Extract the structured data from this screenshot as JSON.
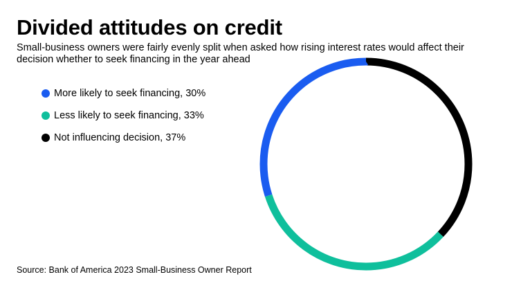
{
  "title": "Divided attitudes on credit",
  "subtitle": "Small-business owners were fairly evenly split when asked how rising interest rates would affect their decision whether to seek financing in the year ahead",
  "source": "Source: Bank of America 2023 Small-Business Owner Report",
  "chart_data": {
    "type": "pie",
    "variant": "donut",
    "legend_placement": "left",
    "slices": [
      {
        "label": "More likely to seek financing, 30%",
        "value": 30,
        "color": "#1a5cf0"
      },
      {
        "label": "Less likely to seek financing, 33%",
        "value": 33,
        "color": "#0fbf9c"
      },
      {
        "label": "Not influencing decision, 37%",
        "value": 37,
        "color": "#000000"
      }
    ],
    "order_clockwise_from_top": [
      "Not influencing decision, 37%",
      "Less likely to seek financing, 33%",
      "More likely to seek financing, 30%"
    ]
  }
}
